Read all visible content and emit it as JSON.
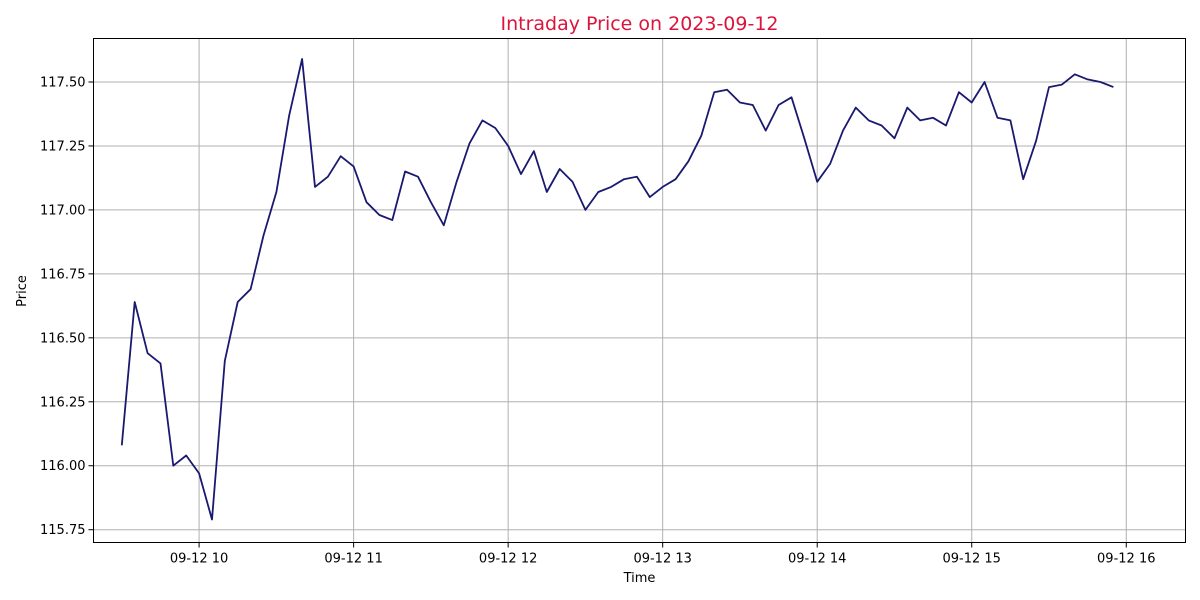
{
  "chart_data": {
    "type": "line",
    "title": "Intraday Price on 2023-09-12",
    "xlabel": "Time",
    "ylabel": "Price",
    "grid": true,
    "colors": {
      "title": "#dc143c",
      "line": "#191970"
    },
    "x_ticks": [
      {
        "value": "2023-09-12 10:00",
        "label": "09-12 10"
      },
      {
        "value": "2023-09-12 11:00",
        "label": "09-12 11"
      },
      {
        "value": "2023-09-12 12:00",
        "label": "09-12 12"
      },
      {
        "value": "2023-09-12 13:00",
        "label": "09-12 13"
      },
      {
        "value": "2023-09-12 14:00",
        "label": "09-12 14"
      },
      {
        "value": "2023-09-12 15:00",
        "label": "09-12 15"
      },
      {
        "value": "2023-09-12 16:00",
        "label": "09-12 16"
      }
    ],
    "y_ticks": [
      {
        "value": 115.75,
        "label": "115.75"
      },
      {
        "value": 116.0,
        "label": "116.00"
      },
      {
        "value": 116.25,
        "label": "116.25"
      },
      {
        "value": 116.5,
        "label": "116.50"
      },
      {
        "value": 116.75,
        "label": "116.75"
      },
      {
        "value": 117.0,
        "label": "117.00"
      },
      {
        "value": 117.25,
        "label": "117.25"
      },
      {
        "value": 117.5,
        "label": "117.50"
      }
    ],
    "xlim": [
      "2023-09-12 09:19",
      "2023-09-12 16:23"
    ],
    "ylim": [
      115.7,
      117.67
    ],
    "series": [
      {
        "x": [
          "2023-09-12 09:30",
          "2023-09-12 09:35",
          "2023-09-12 09:40",
          "2023-09-12 09:45",
          "2023-09-12 09:50",
          "2023-09-12 09:55",
          "2023-09-12 10:00",
          "2023-09-12 10:05",
          "2023-09-12 10:10",
          "2023-09-12 10:15",
          "2023-09-12 10:20",
          "2023-09-12 10:25",
          "2023-09-12 10:30",
          "2023-09-12 10:35",
          "2023-09-12 10:40",
          "2023-09-12 10:45",
          "2023-09-12 10:50",
          "2023-09-12 10:55",
          "2023-09-12 11:00",
          "2023-09-12 11:05",
          "2023-09-12 11:10",
          "2023-09-12 11:15",
          "2023-09-12 11:20",
          "2023-09-12 11:25",
          "2023-09-12 11:30",
          "2023-09-12 11:35",
          "2023-09-12 11:40",
          "2023-09-12 11:45",
          "2023-09-12 11:50",
          "2023-09-12 11:55",
          "2023-09-12 12:00",
          "2023-09-12 12:05",
          "2023-09-12 12:10",
          "2023-09-12 12:15",
          "2023-09-12 12:20",
          "2023-09-12 12:25",
          "2023-09-12 12:30",
          "2023-09-12 12:35",
          "2023-09-12 12:40",
          "2023-09-12 12:45",
          "2023-09-12 12:50",
          "2023-09-12 12:55",
          "2023-09-12 13:00",
          "2023-09-12 13:05",
          "2023-09-12 13:10",
          "2023-09-12 13:15",
          "2023-09-12 13:20",
          "2023-09-12 13:25",
          "2023-09-12 13:30",
          "2023-09-12 13:35",
          "2023-09-12 13:40",
          "2023-09-12 13:45",
          "2023-09-12 13:50",
          "2023-09-12 13:55",
          "2023-09-12 14:00",
          "2023-09-12 14:05",
          "2023-09-12 14:10",
          "2023-09-12 14:15",
          "2023-09-12 14:20",
          "2023-09-12 14:25",
          "2023-09-12 14:30",
          "2023-09-12 14:35",
          "2023-09-12 14:40",
          "2023-09-12 14:45",
          "2023-09-12 14:50",
          "2023-09-12 14:55",
          "2023-09-12 15:00",
          "2023-09-12 15:05",
          "2023-09-12 15:10",
          "2023-09-12 15:15",
          "2023-09-12 15:20",
          "2023-09-12 15:25",
          "2023-09-12 15:30",
          "2023-09-12 15:35",
          "2023-09-12 15:40",
          "2023-09-12 15:45",
          "2023-09-12 15:50",
          "2023-09-12 15:55"
        ],
        "y": [
          116.08,
          116.64,
          116.44,
          116.4,
          116.0,
          116.04,
          115.97,
          115.79,
          116.41,
          116.64,
          116.69,
          116.9,
          117.07,
          117.37,
          117.59,
          117.09,
          117.13,
          117.21,
          117.17,
          117.03,
          116.98,
          116.96,
          117.15,
          117.13,
          117.03,
          116.94,
          117.11,
          117.26,
          117.35,
          117.32,
          117.25,
          117.14,
          117.23,
          117.07,
          117.16,
          117.11,
          117.0,
          117.07,
          117.09,
          117.12,
          117.13,
          117.05,
          117.09,
          117.12,
          117.19,
          117.29,
          117.46,
          117.47,
          117.42,
          117.41,
          117.31,
          117.41,
          117.44,
          117.28,
          117.11,
          117.18,
          117.31,
          117.4,
          117.35,
          117.33,
          117.28,
          117.4,
          117.35,
          117.36,
          117.33,
          117.46,
          117.42,
          117.5,
          117.36,
          117.35,
          117.12,
          117.27,
          117.48,
          117.49,
          117.53,
          117.51,
          117.5,
          117.48
        ]
      }
    ]
  }
}
